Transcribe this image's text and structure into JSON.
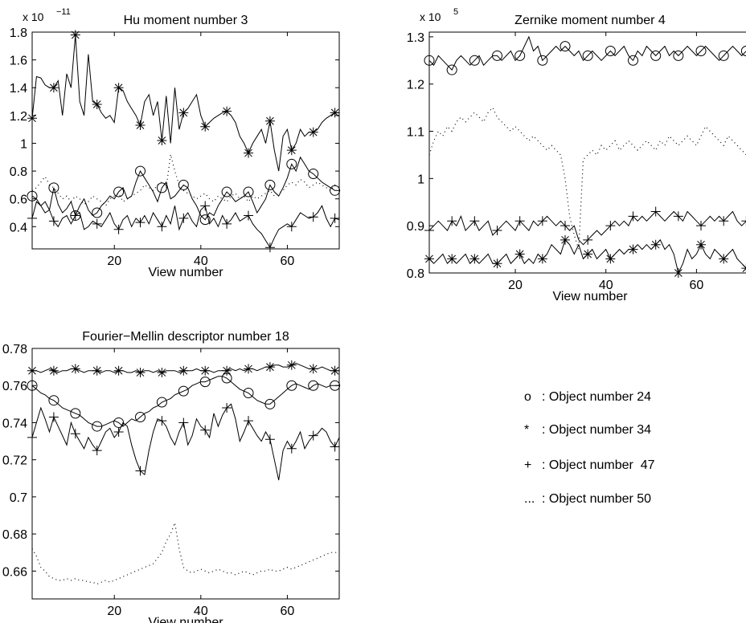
{
  "chart_data": [
    {
      "type": "line",
      "title": "Hu moment number 3",
      "xlabel": "View number",
      "ylabel": "",
      "scale_label": "x 10",
      "scale_exponent": "−11",
      "xlim": [
        1,
        72
      ],
      "ylim": [
        0.24,
        1.8
      ],
      "xticks": [
        20,
        40,
        60
      ],
      "yticks": [
        0.4,
        0.6,
        0.8,
        1,
        1.2,
        1.4,
        1.6,
        1.8
      ],
      "ytick_labels": [
        "0.4",
        "0.6",
        "0.8",
        "1",
        "1.2",
        "1.4",
        "1.6",
        "1.8"
      ],
      "grid": false,
      "series": [
        {
          "marker": "o",
          "style": "solid",
          "marker_every": 5,
          "y": [
            0.62,
            0.6,
            0.55,
            0.58,
            0.52,
            0.68,
            0.56,
            0.5,
            0.53,
            0.58,
            0.48,
            0.55,
            0.6,
            0.52,
            0.48,
            0.5,
            0.55,
            0.58,
            0.62,
            0.6,
            0.65,
            0.68,
            0.6,
            0.62,
            0.72,
            0.8,
            0.75,
            0.7,
            0.65,
            0.58,
            0.68,
            0.72,
            0.6,
            0.62,
            0.66,
            0.7,
            0.68,
            0.6,
            0.55,
            0.48,
            0.45,
            0.5,
            0.48,
            0.55,
            0.6,
            0.65,
            0.62,
            0.58,
            0.6,
            0.62,
            0.65,
            0.58,
            0.5,
            0.55,
            0.6,
            0.7,
            0.65,
            0.62,
            0.68,
            0.75,
            0.85,
            0.8,
            0.9,
            0.85,
            0.8,
            0.78,
            0.75,
            0.72,
            0.7,
            0.68,
            0.66,
            0.66
          ]
        },
        {
          "marker": "*",
          "style": "solid",
          "marker_every": 5,
          "y": [
            1.18,
            1.48,
            1.47,
            1.42,
            1.4,
            1.4,
            1.45,
            1.2,
            1.5,
            1.4,
            1.78,
            1.3,
            1.2,
            1.64,
            1.3,
            1.28,
            1.22,
            1.18,
            1.2,
            1.15,
            1.4,
            1.38,
            1.3,
            1.25,
            1.2,
            1.13,
            1.3,
            1.35,
            1.2,
            1.3,
            1.02,
            1.34,
            1.0,
            1.4,
            1.1,
            1.22,
            1.25,
            1.3,
            1.35,
            1.2,
            1.12,
            1.15,
            1.18,
            1.2,
            1.22,
            1.23,
            1.2,
            1.15,
            1.05,
            1.0,
            0.93,
            1.0,
            1.05,
            1.1,
            1.0,
            1.16,
            0.95,
            0.8,
            1.05,
            1.1,
            0.95,
            1.0,
            1.1,
            1.05,
            1.08,
            1.08,
            1.1,
            1.15,
            1.18,
            1.2,
            1.22,
            1.22
          ]
        },
        {
          "marker": "+",
          "style": "solid",
          "marker_every": 5,
          "y": [
            0.46,
            0.58,
            0.55,
            0.5,
            0.52,
            0.44,
            0.4,
            0.46,
            0.48,
            0.42,
            0.48,
            0.5,
            0.38,
            0.4,
            0.44,
            0.42,
            0.4,
            0.45,
            0.5,
            0.42,
            0.38,
            0.45,
            0.48,
            0.4,
            0.46,
            0.43,
            0.48,
            0.42,
            0.5,
            0.45,
            0.4,
            0.48,
            0.42,
            0.55,
            0.38,
            0.46,
            0.5,
            0.44,
            0.4,
            0.52,
            0.55,
            0.42,
            0.46,
            0.4,
            0.48,
            0.42,
            0.45,
            0.5,
            0.44,
            0.46,
            0.48,
            0.42,
            0.38,
            0.35,
            0.3,
            0.25,
            0.32,
            0.38,
            0.4,
            0.42,
            0.4,
            0.45,
            0.5,
            0.48,
            0.46,
            0.47,
            0.5,
            0.55,
            0.46,
            0.4,
            0.46,
            0.45
          ]
        },
        {
          "marker": "",
          "style": "dotted",
          "marker_every": 0,
          "y": [
            0.66,
            0.68,
            0.72,
            0.76,
            0.7,
            0.68,
            0.64,
            0.6,
            0.62,
            0.58,
            0.62,
            0.6,
            0.56,
            0.58,
            0.62,
            0.6,
            0.58,
            0.55,
            0.6,
            0.62,
            0.64,
            0.58,
            0.6,
            0.62,
            0.64,
            0.66,
            0.7,
            0.68,
            0.66,
            0.7,
            0.72,
            0.68,
            0.92,
            0.8,
            0.7,
            0.66,
            0.64,
            0.62,
            0.6,
            0.62,
            0.64,
            0.6,
            0.58,
            0.62,
            0.6,
            0.58,
            0.62,
            0.64,
            0.6,
            0.62,
            0.58,
            0.62,
            0.6,
            0.62,
            0.64,
            0.66,
            0.62,
            0.64,
            0.66,
            0.7,
            0.72,
            0.7,
            0.74,
            0.72,
            0.68,
            0.7,
            0.72,
            0.7,
            0.68,
            0.66,
            0.7,
            0.68
          ]
        }
      ]
    },
    {
      "type": "line",
      "title": "Zernike moment number 4",
      "xlabel": "View number",
      "ylabel": "",
      "scale_label": "x 10",
      "scale_exponent": "5",
      "xlim": [
        1,
        72
      ],
      "ylim": [
        0.8,
        1.31
      ],
      "xticks": [
        20,
        40,
        60
      ],
      "yticks": [
        0.8,
        0.9,
        1.0,
        1.1,
        1.2,
        1.3
      ],
      "ytick_labels": [
        "0.8",
        "0.9",
        "1",
        "1.1",
        "1.2",
        "1.3"
      ],
      "grid": false,
      "series": [
        {
          "marker": "o",
          "style": "solid",
          "marker_every": 5,
          "y": [
            1.25,
            1.24,
            1.26,
            1.25,
            1.24,
            1.23,
            1.25,
            1.26,
            1.25,
            1.24,
            1.25,
            1.26,
            1.24,
            1.25,
            1.26,
            1.26,
            1.25,
            1.26,
            1.27,
            1.25,
            1.26,
            1.28,
            1.3,
            1.27,
            1.28,
            1.25,
            1.26,
            1.27,
            1.28,
            1.27,
            1.28,
            1.27,
            1.26,
            1.27,
            1.25,
            1.26,
            1.27,
            1.26,
            1.25,
            1.26,
            1.27,
            1.26,
            1.27,
            1.28,
            1.26,
            1.25,
            1.27,
            1.26,
            1.28,
            1.27,
            1.26,
            1.27,
            1.28,
            1.26,
            1.27,
            1.26,
            1.27,
            1.28,
            1.27,
            1.26,
            1.27,
            1.28,
            1.27,
            1.26,
            1.25,
            1.26,
            1.27,
            1.28,
            1.27,
            1.26,
            1.27,
            1.27
          ]
        },
        {
          "marker": "*",
          "style": "solid",
          "marker_every": 5,
          "y": [
            0.83,
            0.82,
            0.83,
            0.84,
            0.82,
            0.83,
            0.82,
            0.83,
            0.84,
            0.82,
            0.83,
            0.82,
            0.83,
            0.84,
            0.82,
            0.82,
            0.83,
            0.84,
            0.82,
            0.83,
            0.84,
            0.82,
            0.83,
            0.82,
            0.84,
            0.83,
            0.84,
            0.86,
            0.85,
            0.84,
            0.87,
            0.86,
            0.84,
            0.86,
            0.83,
            0.84,
            0.85,
            0.83,
            0.84,
            0.85,
            0.83,
            0.84,
            0.85,
            0.84,
            0.85,
            0.85,
            0.86,
            0.85,
            0.86,
            0.85,
            0.86,
            0.87,
            0.85,
            0.86,
            0.84,
            0.8,
            0.82,
            0.85,
            0.83,
            0.84,
            0.86,
            0.84,
            0.83,
            0.85,
            0.84,
            0.83,
            0.84,
            0.85,
            0.83,
            0.82,
            0.81,
            0.8
          ]
        },
        {
          "marker": "+",
          "style": "solid",
          "marker_every": 5,
          "y": [
            0.89,
            0.9,
            0.91,
            0.9,
            0.89,
            0.91,
            0.9,
            0.92,
            0.89,
            0.9,
            0.91,
            0.89,
            0.9,
            0.91,
            0.88,
            0.89,
            0.9,
            0.91,
            0.9,
            0.89,
            0.91,
            0.9,
            0.89,
            0.91,
            0.9,
            0.91,
            0.92,
            0.91,
            0.9,
            0.91,
            0.9,
            0.89,
            0.9,
            0.87,
            0.86,
            0.87,
            0.88,
            0.89,
            0.88,
            0.89,
            0.9,
            0.91,
            0.9,
            0.91,
            0.9,
            0.92,
            0.91,
            0.92,
            0.91,
            0.92,
            0.93,
            0.92,
            0.91,
            0.92,
            0.93,
            0.92,
            0.91,
            0.93,
            0.92,
            0.91,
            0.9,
            0.91,
            0.92,
            0.91,
            0.92,
            0.91,
            0.92,
            0.93,
            0.91,
            0.9,
            0.91,
            0.91
          ]
        },
        {
          "marker": "",
          "style": "dotted",
          "marker_every": 0,
          "y": [
            1.05,
            1.08,
            1.1,
            1.09,
            1.11,
            1.1,
            1.12,
            1.13,
            1.12,
            1.13,
            1.14,
            1.13,
            1.12,
            1.14,
            1.15,
            1.13,
            1.12,
            1.11,
            1.1,
            1.11,
            1.1,
            1.09,
            1.08,
            1.09,
            1.08,
            1.07,
            1.06,
            1.07,
            1.06,
            1.05,
            1.0,
            0.92,
            0.88,
            0.85,
            1.04,
            1.05,
            1.06,
            1.05,
            1.07,
            1.06,
            1.07,
            1.08,
            1.06,
            1.07,
            1.08,
            1.07,
            1.06,
            1.07,
            1.08,
            1.07,
            1.06,
            1.08,
            1.07,
            1.09,
            1.08,
            1.07,
            1.08,
            1.09,
            1.08,
            1.07,
            1.09,
            1.11,
            1.1,
            1.09,
            1.08,
            1.07,
            1.09,
            1.08,
            1.07,
            1.06,
            1.05,
            1.04
          ]
        }
      ]
    },
    {
      "type": "line",
      "title": "Fourier−Mellin descriptor number 18",
      "xlabel": "View number",
      "ylabel": "",
      "scale_label": "",
      "scale_exponent": "",
      "xlim": [
        1,
        72
      ],
      "ylim": [
        0.645,
        0.78
      ],
      "xticks": [
        20,
        40,
        60
      ],
      "yticks": [
        0.66,
        0.68,
        0.7,
        0.72,
        0.74,
        0.76,
        0.78
      ],
      "ytick_labels": [
        "0.66",
        "0.68",
        "0.7",
        "0.72",
        "0.74",
        "0.76",
        "0.78"
      ],
      "grid": false,
      "series": [
        {
          "marker": "o",
          "style": "solid",
          "marker_every": 5,
          "y": [
            0.76,
            0.758,
            0.756,
            0.755,
            0.753,
            0.752,
            0.75,
            0.748,
            0.747,
            0.746,
            0.745,
            0.744,
            0.742,
            0.74,
            0.739,
            0.738,
            0.738,
            0.739,
            0.74,
            0.741,
            0.74,
            0.738,
            0.74,
            0.742,
            0.741,
            0.743,
            0.745,
            0.746,
            0.748,
            0.749,
            0.751,
            0.752,
            0.753,
            0.755,
            0.756,
            0.757,
            0.758,
            0.76,
            0.761,
            0.762,
            0.762,
            0.763,
            0.764,
            0.765,
            0.765,
            0.764,
            0.762,
            0.76,
            0.758,
            0.757,
            0.756,
            0.754,
            0.752,
            0.751,
            0.75,
            0.75,
            0.752,
            0.754,
            0.756,
            0.758,
            0.76,
            0.761,
            0.76,
            0.759,
            0.758,
            0.76,
            0.761,
            0.76,
            0.759,
            0.76,
            0.76,
            0.76
          ]
        },
        {
          "marker": "*",
          "style": "solid",
          "marker_every": 5,
          "y": [
            0.768,
            0.768,
            0.767,
            0.768,
            0.769,
            0.768,
            0.767,
            0.768,
            0.768,
            0.769,
            0.769,
            0.768,
            0.767,
            0.768,
            0.768,
            0.768,
            0.767,
            0.768,
            0.768,
            0.767,
            0.768,
            0.768,
            0.767,
            0.767,
            0.768,
            0.767,
            0.768,
            0.768,
            0.767,
            0.768,
            0.767,
            0.768,
            0.768,
            0.768,
            0.767,
            0.768,
            0.768,
            0.768,
            0.769,
            0.768,
            0.768,
            0.768,
            0.767,
            0.768,
            0.768,
            0.768,
            0.769,
            0.768,
            0.769,
            0.768,
            0.769,
            0.769,
            0.768,
            0.769,
            0.77,
            0.77,
            0.771,
            0.771,
            0.77,
            0.77,
            0.771,
            0.772,
            0.771,
            0.77,
            0.769,
            0.769,
            0.769,
            0.77,
            0.769,
            0.768,
            0.768,
            0.768
          ]
        },
        {
          "marker": "+",
          "style": "solid",
          "marker_every": 5,
          "y": [
            0.732,
            0.74,
            0.748,
            0.742,
            0.735,
            0.743,
            0.738,
            0.733,
            0.728,
            0.74,
            0.734,
            0.73,
            0.726,
            0.732,
            0.728,
            0.725,
            0.73,
            0.735,
            0.737,
            0.732,
            0.735,
            0.74,
            0.738,
            0.728,
            0.72,
            0.714,
            0.712,
            0.725,
            0.735,
            0.742,
            0.741,
            0.738,
            0.732,
            0.728,
            0.735,
            0.74,
            0.728,
            0.733,
            0.742,
            0.738,
            0.736,
            0.732,
            0.745,
            0.738,
            0.744,
            0.748,
            0.75,
            0.742,
            0.73,
            0.735,
            0.741,
            0.737,
            0.733,
            0.73,
            0.735,
            0.731,
            0.72,
            0.709,
            0.725,
            0.73,
            0.726,
            0.73,
            0.735,
            0.726,
            0.73,
            0.733,
            0.734,
            0.737,
            0.735,
            0.73,
            0.727,
            0.732
          ]
        },
        {
          "marker": "",
          "style": "dotted",
          "marker_every": 0,
          "y": [
            0.672,
            0.668,
            0.662,
            0.66,
            0.657,
            0.656,
            0.655,
            0.655,
            0.656,
            0.655,
            0.656,
            0.655,
            0.655,
            0.654,
            0.654,
            0.653,
            0.654,
            0.655,
            0.654,
            0.655,
            0.656,
            0.657,
            0.658,
            0.659,
            0.66,
            0.661,
            0.662,
            0.663,
            0.664,
            0.667,
            0.67,
            0.676,
            0.68,
            0.686,
            0.672,
            0.662,
            0.66,
            0.659,
            0.66,
            0.661,
            0.66,
            0.659,
            0.66,
            0.661,
            0.66,
            0.659,
            0.659,
            0.658,
            0.659,
            0.66,
            0.659,
            0.658,
            0.659,
            0.66,
            0.66,
            0.661,
            0.66,
            0.66,
            0.661,
            0.662,
            0.661,
            0.662,
            0.663,
            0.664,
            0.665,
            0.666,
            0.667,
            0.668,
            0.669,
            0.67,
            0.67,
            0.67
          ]
        }
      ]
    }
  ],
  "legend": {
    "items": [
      {
        "symbol": "o",
        "label": ": Object number 24"
      },
      {
        "symbol": "*",
        "label": ": Object number 34"
      },
      {
        "symbol": "+",
        "label": ": Object number  47"
      },
      {
        "symbol": "...",
        "label": ": Object number 50"
      }
    ]
  }
}
